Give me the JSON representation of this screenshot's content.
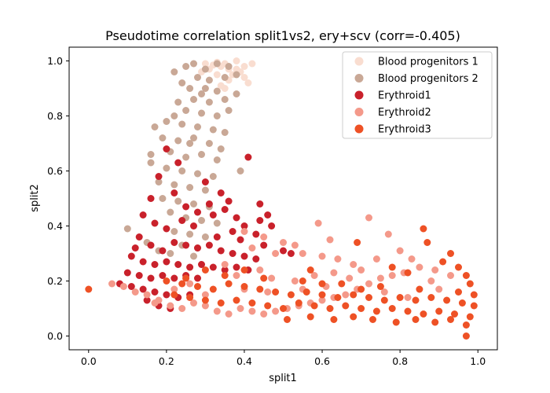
{
  "chart_data": {
    "type": "scatter",
    "title": "Pseudotime correlation split1vs2, ery+scv (corr=-0.405)",
    "xlabel": "split1",
    "ylabel": "split2",
    "xlim": [
      -0.05,
      1.05
    ],
    "ylim": [
      -0.05,
      1.05
    ],
    "xticks": [
      0.0,
      0.2,
      0.4,
      0.6,
      0.8,
      1.0
    ],
    "xtick_labels": [
      "0.0",
      "0.2",
      "0.4",
      "0.6",
      "0.8",
      "1.0"
    ],
    "yticks": [
      0.0,
      0.2,
      0.4,
      0.6,
      0.8,
      1.0
    ],
    "ytick_labels": [
      "0.0",
      "0.2",
      "0.4",
      "0.6",
      "0.8",
      "1.0"
    ],
    "grid": false,
    "legend_position": "upper right",
    "series": [
      {
        "name": "Blood progenitors 1",
        "color": "#f9ddd0",
        "points": [
          [
            0.38,
            1.0
          ],
          [
            0.35,
            0.99
          ],
          [
            0.34,
            0.98
          ],
          [
            0.36,
            0.97
          ],
          [
            0.39,
            0.96
          ],
          [
            0.33,
            0.995
          ],
          [
            0.32,
            0.985
          ],
          [
            0.4,
            0.94
          ],
          [
            0.41,
            0.92
          ],
          [
            0.37,
            0.95
          ],
          [
            0.3,
            0.99
          ],
          [
            0.31,
            0.97
          ],
          [
            0.36,
            0.93
          ],
          [
            0.34,
            0.91
          ],
          [
            0.29,
            0.96
          ],
          [
            0.42,
            0.99
          ],
          [
            0.38,
            0.97
          ],
          [
            0.33,
            0.95
          ],
          [
            0.35,
            0.9
          ],
          [
            0.4,
            0.98
          ]
        ]
      },
      {
        "name": "Blood progenitors 2",
        "color": "#c9a896",
        "points": [
          [
            0.22,
            0.96
          ],
          [
            0.25,
            0.98
          ],
          [
            0.27,
            0.99
          ],
          [
            0.3,
            0.97
          ],
          [
            0.33,
            0.99
          ],
          [
            0.36,
            0.98
          ],
          [
            0.38,
            0.95
          ],
          [
            0.24,
            0.92
          ],
          [
            0.28,
            0.94
          ],
          [
            0.31,
            0.93
          ],
          [
            0.35,
            0.94
          ],
          [
            0.26,
            0.9
          ],
          [
            0.29,
            0.88
          ],
          [
            0.33,
            0.89
          ],
          [
            0.23,
            0.85
          ],
          [
            0.27,
            0.86
          ],
          [
            0.31,
            0.85
          ],
          [
            0.35,
            0.86
          ],
          [
            0.38,
            0.88
          ],
          [
            0.22,
            0.8
          ],
          [
            0.25,
            0.82
          ],
          [
            0.29,
            0.81
          ],
          [
            0.33,
            0.8
          ],
          [
            0.36,
            0.82
          ],
          [
            0.17,
            0.76
          ],
          [
            0.2,
            0.78
          ],
          [
            0.24,
            0.77
          ],
          [
            0.28,
            0.76
          ],
          [
            0.32,
            0.75
          ],
          [
            0.35,
            0.74
          ],
          [
            0.19,
            0.72
          ],
          [
            0.23,
            0.71
          ],
          [
            0.27,
            0.72
          ],
          [
            0.31,
            0.7
          ],
          [
            0.34,
            0.68
          ],
          [
            0.16,
            0.66
          ],
          [
            0.21,
            0.67
          ],
          [
            0.25,
            0.65
          ],
          [
            0.29,
            0.66
          ],
          [
            0.33,
            0.64
          ],
          [
            0.39,
            0.6
          ],
          [
            0.16,
            0.63
          ],
          [
            0.2,
            0.61
          ],
          [
            0.24,
            0.6
          ],
          [
            0.28,
            0.59
          ],
          [
            0.32,
            0.58
          ],
          [
            0.18,
            0.56
          ],
          [
            0.22,
            0.55
          ],
          [
            0.26,
            0.54
          ],
          [
            0.3,
            0.53
          ],
          [
            0.19,
            0.5
          ],
          [
            0.23,
            0.49
          ],
          [
            0.27,
            0.48
          ],
          [
            0.31,
            0.47
          ],
          [
            0.21,
            0.45
          ],
          [
            0.25,
            0.43
          ],
          [
            0.29,
            0.42
          ],
          [
            0.33,
            0.41
          ],
          [
            0.22,
            0.38
          ],
          [
            0.26,
            0.37
          ],
          [
            0.3,
            0.36
          ],
          [
            0.24,
            0.33
          ],
          [
            0.28,
            0.32
          ],
          [
            0.21,
            0.3
          ],
          [
            0.27,
            0.29
          ],
          [
            0.1,
            0.39
          ],
          [
            0.15,
            0.34
          ],
          [
            0.18,
            0.31
          ],
          [
            0.26,
            0.7
          ],
          [
            0.3,
            0.9
          ]
        ]
      },
      {
        "name": "Erythroid1",
        "color": "#c9212b",
        "points": [
          [
            0.2,
            0.68
          ],
          [
            0.23,
            0.63
          ],
          [
            0.18,
            0.58
          ],
          [
            0.16,
            0.5
          ],
          [
            0.22,
            0.52
          ],
          [
            0.25,
            0.47
          ],
          [
            0.28,
            0.45
          ],
          [
            0.32,
            0.44
          ],
          [
            0.35,
            0.46
          ],
          [
            0.38,
            0.43
          ],
          [
            0.4,
            0.4
          ],
          [
            0.43,
            0.37
          ],
          [
            0.41,
            0.65
          ],
          [
            0.44,
            0.48
          ],
          [
            0.47,
            0.4
          ],
          [
            0.45,
            0.33
          ],
          [
            0.5,
            0.31
          ],
          [
            0.14,
            0.44
          ],
          [
            0.17,
            0.41
          ],
          [
            0.2,
            0.39
          ],
          [
            0.13,
            0.36
          ],
          [
            0.16,
            0.33
          ],
          [
            0.19,
            0.31
          ],
          [
            0.22,
            0.34
          ],
          [
            0.25,
            0.33
          ],
          [
            0.28,
            0.32
          ],
          [
            0.31,
            0.33
          ],
          [
            0.34,
            0.31
          ],
          [
            0.37,
            0.3
          ],
          [
            0.4,
            0.29
          ],
          [
            0.43,
            0.28
          ],
          [
            0.11,
            0.29
          ],
          [
            0.14,
            0.27
          ],
          [
            0.17,
            0.26
          ],
          [
            0.2,
            0.27
          ],
          [
            0.23,
            0.26
          ],
          [
            0.26,
            0.25
          ],
          [
            0.29,
            0.26
          ],
          [
            0.32,
            0.25
          ],
          [
            0.35,
            0.24
          ],
          [
            0.38,
            0.25
          ],
          [
            0.41,
            0.24
          ],
          [
            0.1,
            0.23
          ],
          [
            0.13,
            0.22
          ],
          [
            0.16,
            0.21
          ],
          [
            0.19,
            0.22
          ],
          [
            0.22,
            0.21
          ],
          [
            0.25,
            0.22
          ],
          [
            0.28,
            0.21
          ],
          [
            0.08,
            0.19
          ],
          [
            0.11,
            0.18
          ],
          [
            0.14,
            0.17
          ],
          [
            0.17,
            0.16
          ],
          [
            0.2,
            0.15
          ],
          [
            0.23,
            0.14
          ],
          [
            0.26,
            0.15
          ],
          [
            0.18,
            0.11
          ],
          [
            0.15,
            0.13
          ],
          [
            0.21,
            0.1
          ],
          [
            0.3,
            0.56
          ],
          [
            0.34,
            0.52
          ],
          [
            0.36,
            0.49
          ],
          [
            0.37,
            0.38
          ],
          [
            0.33,
            0.36
          ],
          [
            0.27,
            0.4
          ],
          [
            0.24,
            0.42
          ],
          [
            0.12,
            0.32
          ],
          [
            0.46,
            0.44
          ],
          [
            0.39,
            0.35
          ],
          [
            0.52,
            0.3
          ],
          [
            0.44,
            0.42
          ],
          [
            0.31,
            0.48
          ]
        ]
      },
      {
        "name": "Erythroid2",
        "color": "#f4998a",
        "points": [
          [
            0.06,
            0.19
          ],
          [
            0.09,
            0.18
          ],
          [
            0.12,
            0.16
          ],
          [
            0.15,
            0.15
          ],
          [
            0.18,
            0.13
          ],
          [
            0.21,
            0.11
          ],
          [
            0.24,
            0.1
          ],
          [
            0.27,
            0.12
          ],
          [
            0.3,
            0.11
          ],
          [
            0.33,
            0.09
          ],
          [
            0.36,
            0.08
          ],
          [
            0.39,
            0.1
          ],
          [
            0.42,
            0.09
          ],
          [
            0.45,
            0.08
          ],
          [
            0.48,
            0.09
          ],
          [
            0.51,
            0.1
          ],
          [
            0.54,
            0.11
          ],
          [
            0.57,
            0.12
          ],
          [
            0.6,
            0.13
          ],
          [
            0.63,
            0.14
          ],
          [
            0.66,
            0.15
          ],
          [
            0.69,
            0.17
          ],
          [
            0.72,
            0.19
          ],
          [
            0.75,
            0.21
          ],
          [
            0.78,
            0.22
          ],
          [
            0.81,
            0.23
          ],
          [
            0.85,
            0.25
          ],
          [
            0.89,
            0.24
          ],
          [
            0.93,
            0.22
          ],
          [
            0.4,
            0.38
          ],
          [
            0.45,
            0.36
          ],
          [
            0.5,
            0.34
          ],
          [
            0.55,
            0.3
          ],
          [
            0.6,
            0.29
          ],
          [
            0.64,
            0.28
          ],
          [
            0.68,
            0.26
          ],
          [
            0.72,
            0.43
          ],
          [
            0.77,
            0.37
          ],
          [
            0.8,
            0.31
          ],
          [
            0.59,
            0.41
          ],
          [
            0.48,
            0.3
          ],
          [
            0.42,
            0.32
          ],
          [
            0.53,
            0.33
          ],
          [
            0.62,
            0.35
          ],
          [
            0.67,
            0.21
          ],
          [
            0.7,
            0.24
          ],
          [
            0.35,
            0.26
          ],
          [
            0.38,
            0.22
          ],
          [
            0.44,
            0.24
          ],
          [
            0.47,
            0.21
          ],
          [
            0.53,
            0.2
          ],
          [
            0.58,
            0.22
          ],
          [
            0.63,
            0.23
          ],
          [
            0.74,
            0.28
          ],
          [
            0.83,
            0.28
          ],
          [
            0.88,
            0.2
          ],
          [
            0.3,
            0.15
          ],
          [
            0.26,
            0.19
          ],
          [
            0.22,
            0.17
          ],
          [
            0.17,
            0.12
          ],
          [
            0.4,
            0.17
          ],
          [
            0.46,
            0.16
          ],
          [
            0.55,
            0.17
          ],
          [
            0.61,
            0.18
          ],
          [
            0.76,
            0.16
          ],
          [
            0.82,
            0.14
          ],
          [
            0.9,
            0.17
          ]
        ]
      },
      {
        "name": "Erythroid3",
        "color": "#ee5125",
        "points": [
          [
            0.0,
            0.17
          ],
          [
            0.2,
            0.2
          ],
          [
            0.24,
            0.19
          ],
          [
            0.28,
            0.18
          ],
          [
            0.32,
            0.17
          ],
          [
            0.36,
            0.19
          ],
          [
            0.4,
            0.18
          ],
          [
            0.44,
            0.17
          ],
          [
            0.48,
            0.16
          ],
          [
            0.52,
            0.15
          ],
          [
            0.56,
            0.16
          ],
          [
            0.6,
            0.15
          ],
          [
            0.64,
            0.14
          ],
          [
            0.68,
            0.15
          ],
          [
            0.72,
            0.14
          ],
          [
            0.76,
            0.13
          ],
          [
            0.8,
            0.14
          ],
          [
            0.84,
            0.13
          ],
          [
            0.88,
            0.14
          ],
          [
            0.92,
            0.13
          ],
          [
            0.96,
            0.12
          ],
          [
            0.99,
            0.11
          ],
          [
            0.22,
            0.15
          ],
          [
            0.26,
            0.14
          ],
          [
            0.3,
            0.13
          ],
          [
            0.34,
            0.12
          ],
          [
            0.38,
            0.13
          ],
          [
            0.42,
            0.12
          ],
          [
            0.46,
            0.11
          ],
          [
            0.5,
            0.1
          ],
          [
            0.54,
            0.12
          ],
          [
            0.58,
            0.11
          ],
          [
            0.62,
            0.1
          ],
          [
            0.66,
            0.11
          ],
          [
            0.7,
            0.1
          ],
          [
            0.74,
            0.09
          ],
          [
            0.78,
            0.1
          ],
          [
            0.82,
            0.09
          ],
          [
            0.86,
            0.08
          ],
          [
            0.9,
            0.09
          ],
          [
            0.94,
            0.08
          ],
          [
            0.98,
            0.07
          ],
          [
            0.25,
            0.21
          ],
          [
            0.35,
            0.22
          ],
          [
            0.45,
            0.21
          ],
          [
            0.55,
            0.2
          ],
          [
            0.65,
            0.19
          ],
          [
            0.75,
            0.18
          ],
          [
            0.85,
            0.17
          ],
          [
            0.95,
            0.16
          ],
          [
            0.98,
            0.19
          ],
          [
            0.97,
            0.22
          ],
          [
            0.97,
            0.0
          ],
          [
            0.97,
            0.04
          ],
          [
            0.93,
            0.06
          ],
          [
            0.89,
            0.05
          ],
          [
            0.84,
            0.06
          ],
          [
            0.79,
            0.05
          ],
          [
            0.73,
            0.06
          ],
          [
            0.68,
            0.07
          ],
          [
            0.63,
            0.06
          ],
          [
            0.57,
            0.07
          ],
          [
            0.51,
            0.06
          ],
          [
            0.86,
            0.39
          ],
          [
            0.87,
            0.34
          ],
          [
            0.69,
            0.34
          ],
          [
            0.91,
            0.27
          ],
          [
            0.93,
            0.3
          ],
          [
            0.95,
            0.25
          ],
          [
            0.82,
            0.23
          ],
          [
            0.78,
            0.25
          ],
          [
            0.57,
            0.24
          ],
          [
            0.4,
            0.24
          ],
          [
            0.3,
            0.24
          ],
          [
            0.99,
            0.15
          ],
          [
            0.6,
            0.19
          ],
          [
            0.7,
            0.17
          ]
        ]
      }
    ]
  }
}
